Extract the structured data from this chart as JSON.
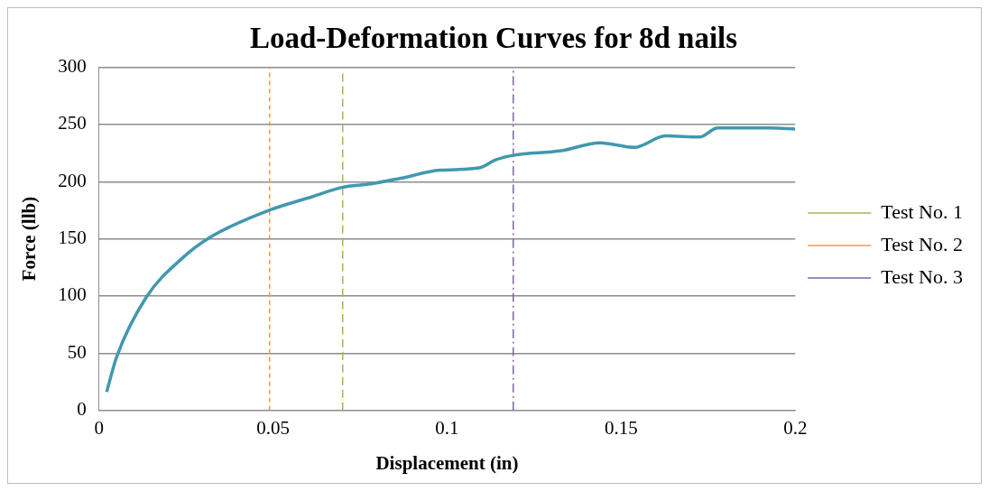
{
  "chart_data": {
    "type": "line",
    "title": "Load-Deformation Curves for 8d nails",
    "xlabel": "Displacement (in)",
    "ylabel": "Force (llb)",
    "xlim": [
      0,
      0.2
    ],
    "xticks": [
      0,
      0.05,
      0.1,
      0.15,
      0.2
    ],
    "ylim": [
      0,
      300
    ],
    "yticks": [
      0,
      50,
      100,
      150,
      200,
      250,
      300
    ],
    "grid": "y",
    "legend": "right",
    "marker": "none",
    "series": [
      {
        "color": "#4198af",
        "line_style": "solid",
        "x": [
          0.0022,
          0.0051,
          0.0136,
          0.0239,
          0.0323,
          0.0489,
          0.0614,
          0.0698,
          0.078,
          0.0867,
          0.098,
          0.1092,
          0.1139,
          0.119,
          0.1327,
          0.1439,
          0.1538,
          0.1627,
          0.1725,
          0.1777,
          0.1927,
          0.2
        ],
        "values": [
          16,
          47,
          99,
          133,
          152,
          175,
          187,
          195,
          198,
          203,
          210,
          212,
          219,
          223,
          227,
          234,
          230,
          240,
          239,
          247,
          247,
          246
        ]
      },
      {
        "name": "Test No. 1",
        "color": "#9bbb59",
        "line_style": "dashed",
        "x": [
          0.07,
          0.07
        ],
        "values": [
          0,
          297
        ]
      },
      {
        "name": "Test No. 2",
        "color": "#f79646",
        "line_style": "dotted",
        "x": [
          0.049,
          0.049
        ],
        "values": [
          0,
          300
        ]
      },
      {
        "name": "Test No. 3",
        "color": "#8064a2",
        "line_style": "dashdot",
        "x": [
          0.119,
          0.119
        ],
        "values": [
          0,
          300
        ]
      }
    ]
  }
}
